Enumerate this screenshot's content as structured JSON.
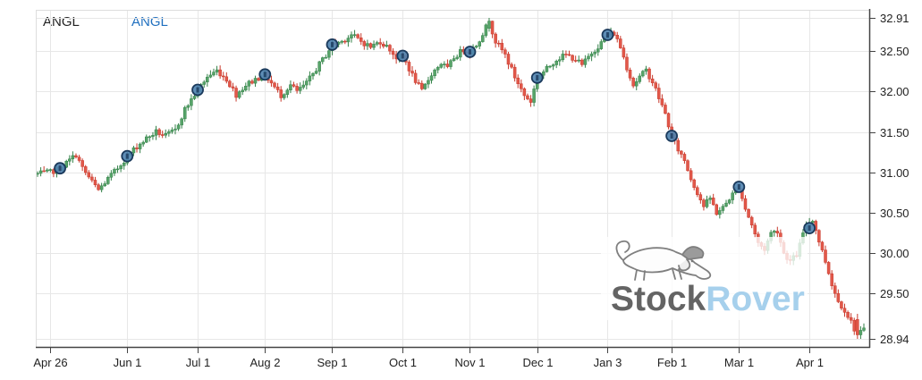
{
  "header": {
    "symbol_primary": "ANGL",
    "symbol_secondary": "ANGL",
    "primary_color": "#222222",
    "secondary_color": "#1f6fbf"
  },
  "watermark": {
    "part1": "Stock",
    "part2": "Rover",
    "part1_color": "#646464",
    "part2_color": "#a6d0ec"
  },
  "chart_data": {
    "type": "candlestick",
    "symbol": "ANGL",
    "title": "ANGL daily price chart, Apr 26 through mid-April",
    "y_axis": {
      "min": 28.94,
      "max": 32.91,
      "tick_labels": [
        "32.91",
        "32.50",
        "32.00",
        "31.50",
        "31.00",
        "30.50",
        "30.00",
        "29.50",
        "28.94"
      ],
      "tick_values": [
        32.91,
        32.5,
        32.0,
        31.5,
        31.0,
        30.5,
        30.0,
        29.5,
        28.94
      ],
      "side": "right"
    },
    "x_axis": {
      "ticks": [
        {
          "day": 4,
          "label": "Apr 26"
        },
        {
          "day": 28,
          "label": "Jun 1"
        },
        {
          "day": 50,
          "label": "Jul 1"
        },
        {
          "day": 71,
          "label": "Aug 2"
        },
        {
          "day": 92,
          "label": "Sep 1"
        },
        {
          "day": 114,
          "label": "Oct 1"
        },
        {
          "day": 135,
          "label": "Nov 1"
        },
        {
          "day": 156,
          "label": "Dec 1"
        },
        {
          "day": 178,
          "label": "Jan 3"
        },
        {
          "day": 198,
          "label": "Feb 1"
        },
        {
          "day": 219,
          "label": "Mar 1"
        },
        {
          "day": 241,
          "label": "Apr 1"
        }
      ]
    },
    "num_days": 259,
    "close_anchors": [
      [
        0,
        30.98
      ],
      [
        4,
        31.0
      ],
      [
        7,
        31.05
      ],
      [
        10,
        31.15
      ],
      [
        12,
        31.22
      ],
      [
        14,
        31.05
      ],
      [
        17,
        30.88
      ],
      [
        19,
        30.78
      ],
      [
        22,
        30.92
      ],
      [
        25,
        31.05
      ],
      [
        28,
        31.2
      ],
      [
        31,
        31.32
      ],
      [
        34,
        31.42
      ],
      [
        37,
        31.5
      ],
      [
        40,
        31.45
      ],
      [
        43,
        31.52
      ],
      [
        46,
        31.78
      ],
      [
        50,
        32.02
      ],
      [
        53,
        32.18
      ],
      [
        56,
        32.26
      ],
      [
        59,
        32.15
      ],
      [
        62,
        31.96
      ],
      [
        65,
        32.08
      ],
      [
        68,
        32.15
      ],
      [
        71,
        32.21
      ],
      [
        74,
        32.05
      ],
      [
        76,
        31.95
      ],
      [
        79,
        32.08
      ],
      [
        81,
        32.0
      ],
      [
        84,
        32.1
      ],
      [
        87,
        32.28
      ],
      [
        90,
        32.45
      ],
      [
        92,
        32.58
      ],
      [
        95,
        32.62
      ],
      [
        98,
        32.7
      ],
      [
        101,
        32.62
      ],
      [
        104,
        32.55
      ],
      [
        107,
        32.62
      ],
      [
        110,
        32.52
      ],
      [
        112,
        32.42
      ],
      [
        114,
        32.44
      ],
      [
        117,
        32.2
      ],
      [
        120,
        32.0
      ],
      [
        123,
        32.22
      ],
      [
        126,
        32.35
      ],
      [
        128,
        32.28
      ],
      [
        130,
        32.42
      ],
      [
        133,
        32.52
      ],
      [
        135,
        32.49
      ],
      [
        137,
        32.58
      ],
      [
        139,
        32.72
      ],
      [
        141,
        32.87
      ],
      [
        143,
        32.62
      ],
      [
        146,
        32.45
      ],
      [
        149,
        32.18
      ],
      [
        152,
        31.95
      ],
      [
        154,
        31.88
      ],
      [
        156,
        32.17
      ],
      [
        159,
        32.28
      ],
      [
        162,
        32.4
      ],
      [
        165,
        32.45
      ],
      [
        168,
        32.4
      ],
      [
        170,
        32.32
      ],
      [
        173,
        32.48
      ],
      [
        176,
        32.6
      ],
      [
        178,
        32.7
      ],
      [
        180,
        32.72
      ],
      [
        182,
        32.55
      ],
      [
        184,
        32.3
      ],
      [
        186,
        32.08
      ],
      [
        188,
        32.18
      ],
      [
        190,
        32.26
      ],
      [
        192,
        32.12
      ],
      [
        194,
        31.92
      ],
      [
        196,
        31.72
      ],
      [
        198,
        31.45
      ],
      [
        200,
        31.28
      ],
      [
        202,
        31.15
      ],
      [
        204,
        30.92
      ],
      [
        206,
        30.75
      ],
      [
        208,
        30.58
      ],
      [
        210,
        30.68
      ],
      [
        212,
        30.5
      ],
      [
        214,
        30.56
      ],
      [
        216,
        30.68
      ],
      [
        219,
        30.82
      ],
      [
        221,
        30.55
      ],
      [
        223,
        30.35
      ],
      [
        225,
        30.12
      ],
      [
        227,
        30.05
      ],
      [
        229,
        30.25
      ],
      [
        231,
        30.28
      ],
      [
        233,
        30.0
      ],
      [
        235,
        29.9
      ],
      [
        237,
        29.98
      ],
      [
        240,
        30.35
      ],
      [
        242,
        30.42
      ],
      [
        244,
        30.15
      ],
      [
        246,
        29.9
      ],
      [
        248,
        29.62
      ],
      [
        250,
        29.4
      ],
      [
        252,
        29.3
      ],
      [
        254,
        29.15
      ],
      [
        256,
        28.98
      ],
      [
        258,
        29.05
      ]
    ],
    "extremes": {
      "high": {
        "day": 141,
        "open": 32.78,
        "close": 32.87,
        "high": 32.91,
        "low": 32.74
      },
      "low": {
        "day": 256,
        "open": 29.18,
        "close": 28.99,
        "high": 29.25,
        "low": 28.94
      }
    },
    "month_markers": [
      {
        "day": 7,
        "price": 31.05
      },
      {
        "day": 28,
        "price": 31.2
      },
      {
        "day": 50,
        "price": 32.02
      },
      {
        "day": 71,
        "price": 32.21
      },
      {
        "day": 92,
        "price": 32.58
      },
      {
        "day": 114,
        "price": 32.44
      },
      {
        "day": 135,
        "price": 32.49
      },
      {
        "day": 156,
        "price": 32.17
      },
      {
        "day": 178,
        "price": 32.7
      },
      {
        "day": 198,
        "price": 31.45
      },
      {
        "day": 219,
        "price": 30.82
      },
      {
        "day": 241,
        "price": 30.31
      }
    ],
    "colors": {
      "up_fill": "#57a469",
      "up_stroke": "#35824a",
      "down_fill": "#e2584a",
      "down_stroke": "#c8392c",
      "marker_fill": "#4e82af",
      "marker_stroke": "#1b3a5c",
      "grid": "#e7e7e7",
      "axis": "#444444",
      "tick_text": "#222222"
    },
    "legend_position": "none",
    "grid": true
  }
}
